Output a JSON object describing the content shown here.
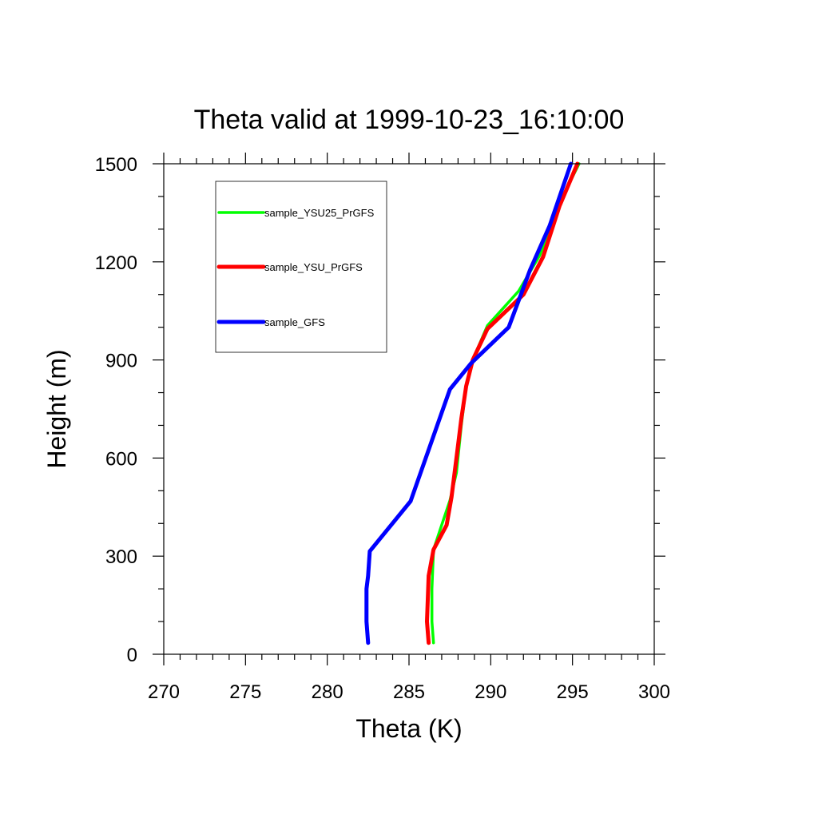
{
  "chart_data": {
    "type": "line",
    "title": "Theta valid at 1999-10-23_16:10:00",
    "xlabel": "Theta (K)",
    "ylabel": "Height (m)",
    "xlim": [
      270,
      300
    ],
    "ylim": [
      0,
      1500
    ],
    "x_ticks": [
      "270",
      "275",
      "280",
      "285",
      "290",
      "295",
      "300"
    ],
    "y_ticks": [
      "0",
      "300",
      "600",
      "900",
      "1200",
      "1500"
    ],
    "grid": false,
    "legend_position": "top-left",
    "series": [
      {
        "name": "sample_YSU25_PrGFS",
        "color": "#00ff00",
        "points": [
          [
            286.5,
            35
          ],
          [
            286.4,
            100
          ],
          [
            286.4,
            200
          ],
          [
            286.5,
            320
          ],
          [
            287.0,
            395
          ],
          [
            287.5,
            470
          ],
          [
            287.9,
            555
          ],
          [
            288.2,
            700
          ],
          [
            288.5,
            820
          ],
          [
            288.9,
            900
          ],
          [
            289.8,
            1005
          ],
          [
            291.7,
            1110
          ],
          [
            293.0,
            1220
          ],
          [
            294.2,
            1380
          ],
          [
            295.4,
            1500
          ]
        ]
      },
      {
        "name": "sample_YSU_PrGFS",
        "color": "#ff0000",
        "points": [
          [
            286.2,
            35
          ],
          [
            286.1,
            100
          ],
          [
            286.2,
            240
          ],
          [
            286.5,
            320
          ],
          [
            287.3,
            395
          ],
          [
            287.6,
            480
          ],
          [
            287.9,
            600
          ],
          [
            288.2,
            720
          ],
          [
            288.5,
            820
          ],
          [
            288.9,
            900
          ],
          [
            289.8,
            995
          ],
          [
            292.0,
            1100
          ],
          [
            293.2,
            1215
          ],
          [
            294.2,
            1370
          ],
          [
            295.3,
            1500
          ]
        ]
      },
      {
        "name": "sample_GFS",
        "color": "#0000ff",
        "points": [
          [
            282.5,
            35
          ],
          [
            282.4,
            100
          ],
          [
            282.4,
            200
          ],
          [
            282.5,
            240
          ],
          [
            282.6,
            315
          ],
          [
            285.1,
            468
          ],
          [
            287.5,
            810
          ],
          [
            288.8,
            890
          ],
          [
            291.1,
            1000
          ],
          [
            292.4,
            1175
          ],
          [
            293.6,
            1310
          ],
          [
            294.9,
            1500
          ]
        ]
      }
    ]
  }
}
